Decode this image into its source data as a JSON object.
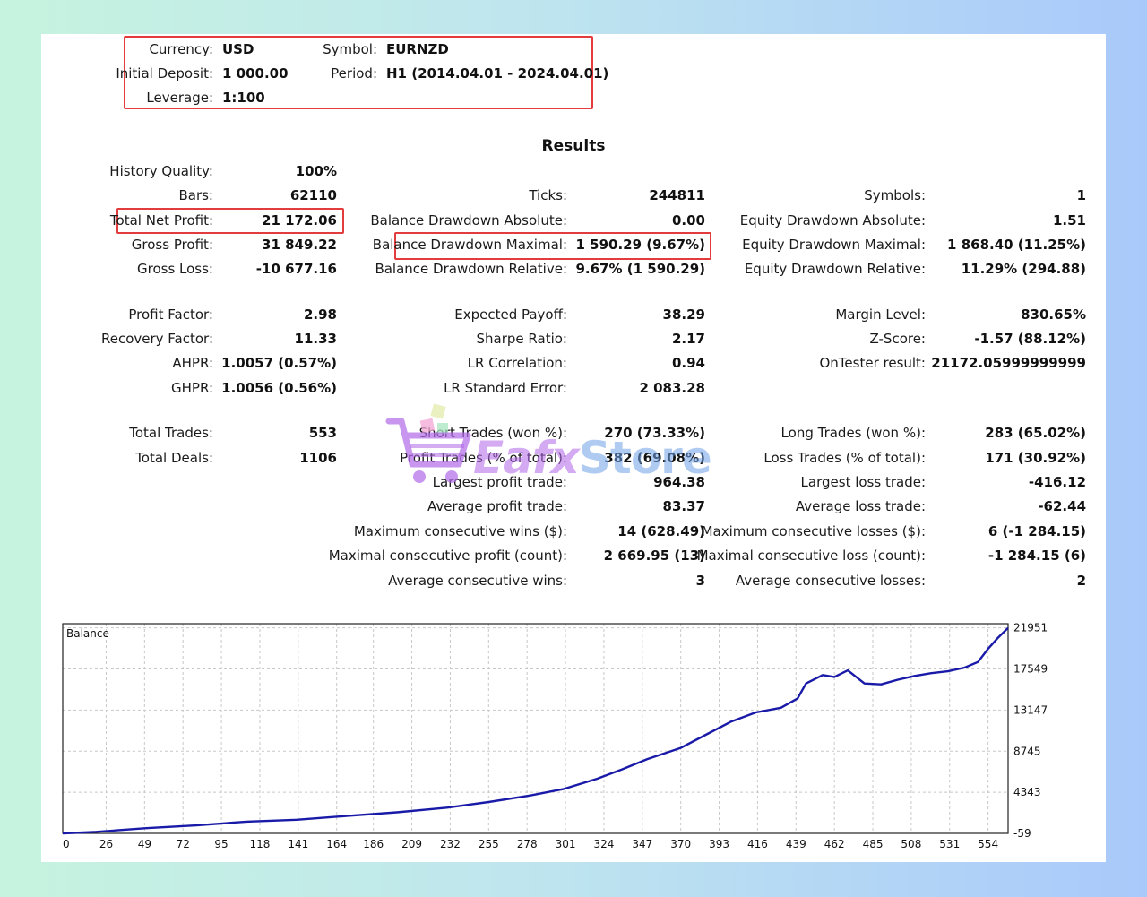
{
  "header": {
    "currency_label": "Currency:",
    "currency_value": "USD",
    "symbol_label": "Symbol:",
    "symbol_value": "EURNZD",
    "deposit_label": "Initial Deposit:",
    "deposit_value": "1 000.00",
    "period_label": "Period:",
    "period_value": "H1 (2014.04.01 - 2024.04.01)",
    "leverage_label": "Leverage:",
    "leverage_value": "1:100"
  },
  "results_title": "Results",
  "col1": [
    {
      "label": "History Quality:",
      "value": "100%"
    },
    {
      "label": "Bars:",
      "value": "62110"
    },
    {
      "label": "Total Net Profit:",
      "value": "21 172.06"
    },
    {
      "label": "Gross Profit:",
      "value": "31 849.22"
    },
    {
      "label": "Gross Loss:",
      "value": "-10 677.16"
    },
    {
      "label": "Profit Factor:",
      "value": "2.98"
    },
    {
      "label": "Recovery Factor:",
      "value": "11.33"
    },
    {
      "label": "AHPR:",
      "value": "1.0057 (0.57%)"
    },
    {
      "label": "GHPR:",
      "value": "1.0056 (0.56%)"
    },
    {
      "label": "Total Trades:",
      "value": "553"
    },
    {
      "label": "Total Deals:",
      "value": "1106"
    }
  ],
  "col2": [
    {
      "label": "Ticks:",
      "value": "244811"
    },
    {
      "label": "Balance Drawdown Absolute:",
      "value": "0.00"
    },
    {
      "label": "Balance Drawdown Maximal:",
      "value": "1 590.29 (9.67%)"
    },
    {
      "label": "Balance Drawdown Relative:",
      "value": "9.67% (1 590.29)"
    },
    {
      "label": "Expected Payoff:",
      "value": "38.29"
    },
    {
      "label": "Sharpe Ratio:",
      "value": "2.17"
    },
    {
      "label": "LR Correlation:",
      "value": "0.94"
    },
    {
      "label": "LR Standard Error:",
      "value": "2 083.28"
    },
    {
      "label": "Short Trades (won %):",
      "value": "270 (73.33%)"
    },
    {
      "label": "Profit Trades (% of total):",
      "value": "382 (69.08%)"
    },
    {
      "label": "Largest profit trade:",
      "value": "964.38"
    },
    {
      "label": "Average profit trade:",
      "value": "83.37"
    },
    {
      "label": "Maximum consecutive wins ($):",
      "value": "14 (628.49)"
    },
    {
      "label": "Maximal consecutive profit (count):",
      "value": "2 669.95 (13)"
    },
    {
      "label": "Average consecutive wins:",
      "value": "3"
    }
  ],
  "col3": [
    {
      "label": "Symbols:",
      "value": "1"
    },
    {
      "label": "Equity Drawdown Absolute:",
      "value": "1.51"
    },
    {
      "label": "Equity Drawdown Maximal:",
      "value": "1 868.40 (11.25%)"
    },
    {
      "label": "Equity Drawdown Relative:",
      "value": "11.29% (294.88)"
    },
    {
      "label": "Margin Level:",
      "value": "830.65%"
    },
    {
      "label": "Z-Score:",
      "value": "-1.57 (88.12%)"
    },
    {
      "label": "OnTester result:",
      "value": "21172.05999999999"
    },
    {
      "label": "Long Trades (won %):",
      "value": "283 (65.02%)"
    },
    {
      "label": "Loss Trades (% of total):",
      "value": "171 (30.92%)"
    },
    {
      "label": "Largest loss trade:",
      "value": "-416.12"
    },
    {
      "label": "Average loss trade:",
      "value": "-62.44"
    },
    {
      "label": "Maximum consecutive losses ($):",
      "value": "6 (-1 284.15)"
    },
    {
      "label": "Maximal consecutive loss (count):",
      "value": "-1 284.15 (6)"
    },
    {
      "label": "Average consecutive losses:",
      "value": "2"
    }
  ],
  "watermark": {
    "part1": "Eafx",
    "part2": "Store",
    "cart_color": "#b06ae8"
  },
  "colors": {
    "highlight_box": "#e23c3c",
    "balance_line": "#1a1aa8",
    "grid": "#c8c8c8"
  },
  "chart_data": {
    "type": "line",
    "title": "Balance",
    "x_ticks": [
      "0",
      "26",
      "49",
      "72",
      "95",
      "118",
      "141",
      "164",
      "186",
      "209",
      "232",
      "255",
      "278",
      "301",
      "324",
      "347",
      "370",
      "393",
      "416",
      "439",
      "462",
      "485",
      "508",
      "531",
      "554"
    ],
    "y_ticks": [
      "21951",
      "17549",
      "13147",
      "8745",
      "4343",
      "-59"
    ],
    "xlim": [
      0,
      566
    ],
    "ylim": [
      -59,
      22400
    ],
    "series": [
      {
        "x": [
          0,
          20,
          50,
          80,
          110,
          140,
          170,
          200,
          230,
          255,
          280,
          300,
          320,
          335,
          350,
          370,
          385,
          400,
          415,
          430,
          440,
          445,
          455,
          462,
          470,
          480,
          490,
          500,
          510,
          520,
          530,
          540,
          548,
          554,
          560,
          566
        ],
        "y": [
          -59,
          100,
          500,
          800,
          1200,
          1400,
          1800,
          2200,
          2700,
          3300,
          4000,
          4700,
          5800,
          6800,
          7900,
          9100,
          10500,
          11900,
          12900,
          13400,
          14400,
          16000,
          16900,
          16700,
          17400,
          16000,
          15900,
          16400,
          16800,
          17100,
          17300,
          17700,
          18300,
          19700,
          20900,
          21951
        ]
      }
    ]
  }
}
